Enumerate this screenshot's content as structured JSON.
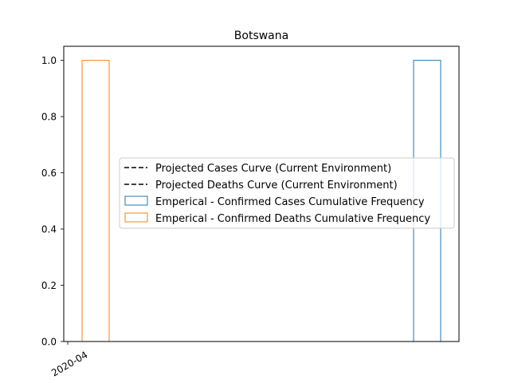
{
  "chart_data": {
    "type": "bar",
    "title": "Botswana",
    "xlabel": "",
    "ylabel": "",
    "ylim": [
      0,
      1.05
    ],
    "y_ticks": [
      0.0,
      0.2,
      0.4,
      0.6,
      0.8,
      1.0
    ],
    "y_tick_labels": [
      "0.0",
      "0.2",
      "0.4",
      "0.6",
      "0.8",
      "1.0"
    ],
    "x_tick_labels": [
      "2020-04"
    ],
    "grid": false,
    "legend_position": "center-right",
    "series": [
      {
        "name": "Projected Cases Curve (Current Environment)",
        "kind": "line",
        "style": "dashed",
        "color": "#000000",
        "values": []
      },
      {
        "name": "Projected Deaths Curve (Current Environment)",
        "kind": "line",
        "style": "dashed",
        "color": "#000000",
        "values": []
      },
      {
        "name": "Emperical - Confirmed Cases Cumulative Frequency",
        "kind": "step-histogram",
        "color": "#1f77b4",
        "values": [
          1.0
        ]
      },
      {
        "name": "Emperical - Confirmed Deaths Cumulative Frequency",
        "kind": "step-histogram",
        "color": "#ff7f0e",
        "values": [
          1.0
        ]
      }
    ]
  }
}
